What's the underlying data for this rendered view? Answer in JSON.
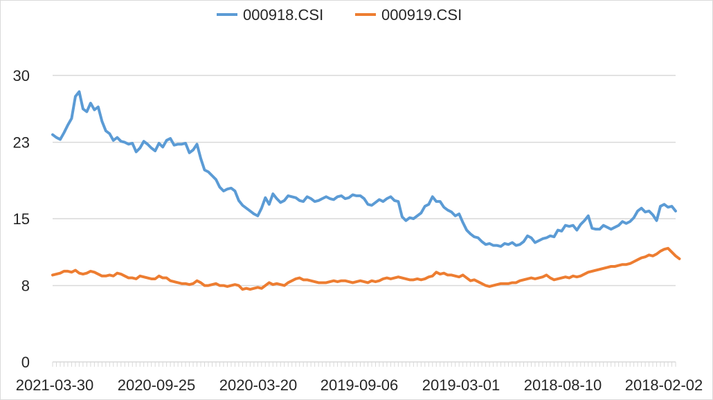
{
  "chart_data": {
    "type": "line",
    "title": "",
    "xlabel": "",
    "ylabel": "",
    "ylim": [
      0,
      30
    ],
    "yticks": [
      0,
      8,
      15,
      23,
      30
    ],
    "grid": true,
    "legend_position": "top-center",
    "x_tick_labels": [
      "2021-03-30",
      "2020-09-25",
      "2020-03-20",
      "2019-09-06",
      "2019-03-01",
      "2018-08-10",
      "2018-02-02"
    ],
    "series": [
      {
        "name": "000918.CSI",
        "color": "#5b9bd5",
        "values": [
          23.8,
          23.5,
          23.3,
          24.0,
          24.8,
          25.5,
          27.8,
          28.3,
          26.5,
          26.2,
          27.1,
          26.4,
          26.7,
          25.2,
          24.2,
          23.9,
          23.2,
          23.5,
          23.1,
          23.0,
          22.8,
          22.9,
          22.0,
          22.4,
          23.1,
          22.8,
          22.4,
          22.1,
          22.9,
          22.5,
          23.2,
          23.4,
          22.7,
          22.8,
          22.8,
          22.9,
          21.9,
          22.2,
          22.8,
          21.3,
          20.1,
          19.9,
          19.5,
          19.1,
          18.3,
          17.9,
          18.1,
          18.2,
          17.9,
          16.9,
          16.4,
          16.1,
          15.8,
          15.5,
          15.3,
          16.1,
          17.2,
          16.5,
          17.6,
          17.1,
          16.7,
          16.9,
          17.4,
          17.3,
          17.2,
          16.9,
          16.8,
          17.3,
          17.1,
          16.8,
          16.9,
          17.1,
          17.3,
          17.1,
          17.0,
          17.3,
          17.4,
          17.1,
          17.2,
          17.5,
          17.4,
          17.4,
          17.1,
          16.5,
          16.4,
          16.7,
          17.0,
          16.8,
          17.1,
          17.3,
          16.9,
          16.8,
          15.2,
          14.8,
          15.1,
          15.0,
          15.3,
          15.6,
          16.3,
          16.5,
          17.3,
          16.8,
          16.8,
          16.2,
          15.9,
          15.7,
          15.3,
          15.5,
          14.6,
          13.8,
          13.4,
          13.1,
          13.0,
          12.6,
          12.3,
          12.4,
          12.2,
          12.2,
          12.1,
          12.4,
          12.3,
          12.5,
          12.2,
          12.3,
          12.6,
          13.2,
          13.0,
          12.5,
          12.7,
          12.9,
          13.0,
          13.2,
          13.1,
          13.8,
          13.7,
          14.3,
          14.2,
          14.3,
          13.8,
          14.4,
          14.8,
          15.3,
          14.0,
          13.9,
          13.9,
          14.3,
          14.1,
          13.9,
          14.1,
          14.3,
          14.7,
          14.5,
          14.7,
          15.1,
          15.8,
          16.1,
          15.7,
          15.8,
          15.4,
          14.8,
          16.3,
          16.5,
          16.2,
          16.3,
          15.8
        ],
        "values_note": ""
      },
      {
        "name": "000919.CSI",
        "color": "#ed7d31",
        "values": [
          9.1,
          9.2,
          9.3,
          9.5,
          9.5,
          9.4,
          9.6,
          9.3,
          9.2,
          9.3,
          9.5,
          9.4,
          9.2,
          9.0,
          9.0,
          9.1,
          9.0,
          9.3,
          9.2,
          9.0,
          8.8,
          8.8,
          8.7,
          9.0,
          8.9,
          8.8,
          8.7,
          8.7,
          9.0,
          8.8,
          8.8,
          8.5,
          8.4,
          8.3,
          8.2,
          8.2,
          8.1,
          8.2,
          8.5,
          8.3,
          8.0,
          8.0,
          8.1,
          8.2,
          8.0,
          8.0,
          7.9,
          8.0,
          8.1,
          8.0,
          7.6,
          7.7,
          7.6,
          7.7,
          7.8,
          7.7,
          8.0,
          8.3,
          8.1,
          8.2,
          8.1,
          8.0,
          8.3,
          8.5,
          8.7,
          8.8,
          8.6,
          8.6,
          8.5,
          8.4,
          8.3,
          8.3,
          8.3,
          8.4,
          8.5,
          8.4,
          8.5,
          8.5,
          8.4,
          8.3,
          8.4,
          8.5,
          8.4,
          8.3,
          8.5,
          8.4,
          8.5,
          8.7,
          8.8,
          8.7,
          8.8,
          8.9,
          8.8,
          8.7,
          8.6,
          8.6,
          8.7,
          8.6,
          8.7,
          8.9,
          9.0,
          9.4,
          9.2,
          9.3,
          9.1,
          9.1,
          9.0,
          8.9,
          9.1,
          8.8,
          8.5,
          8.6,
          8.4,
          8.2,
          8.0,
          7.9,
          8.0,
          8.1,
          8.2,
          8.2,
          8.2,
          8.3,
          8.3,
          8.5,
          8.6,
          8.7,
          8.8,
          8.7,
          8.8,
          8.9,
          9.1,
          8.8,
          8.6,
          8.7,
          8.8,
          8.9,
          8.8,
          9.0,
          8.9,
          9.0,
          9.2,
          9.4,
          9.5,
          9.6,
          9.7,
          9.8,
          9.9,
          10.0,
          10.0,
          10.1,
          10.2,
          10.2,
          10.3,
          10.5,
          10.7,
          10.9,
          11.0,
          11.2,
          11.1,
          11.3,
          11.6,
          11.8,
          11.9,
          11.5,
          11.1,
          10.8
        ]
      }
    ]
  }
}
